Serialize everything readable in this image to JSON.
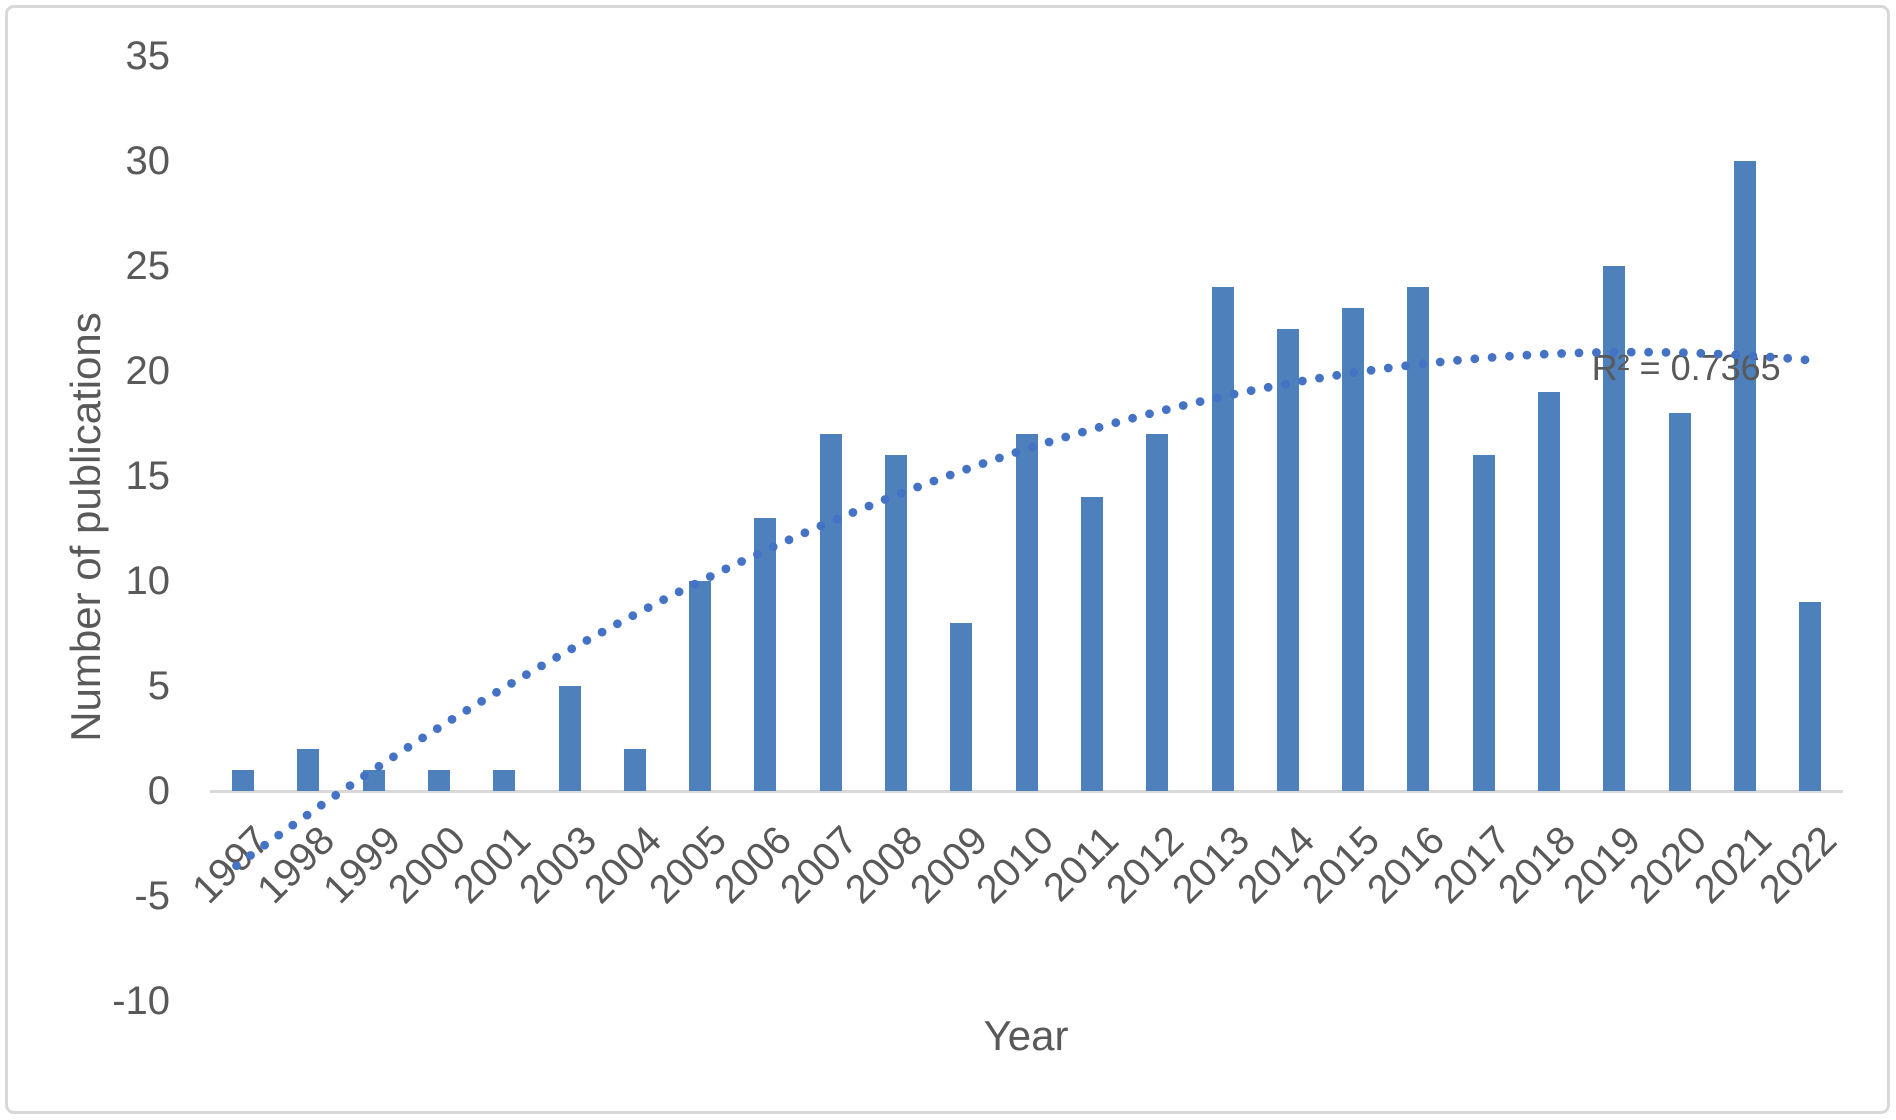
{
  "chart_data": {
    "type": "bar",
    "title": "",
    "xlabel": "Year",
    "ylabel": "Number of publications",
    "categories": [
      "1997",
      "1998",
      "1999",
      "2000",
      "2001",
      "2003",
      "2004",
      "2005",
      "2006",
      "2007",
      "2008",
      "2009",
      "2010",
      "2011",
      "2012",
      "2013",
      "2014",
      "2015",
      "2016",
      "2017",
      "2018",
      "2019",
      "2020",
      "2021",
      "2022"
    ],
    "values": [
      1,
      2,
      1,
      1,
      1,
      5,
      2,
      10,
      13,
      17,
      16,
      8,
      17,
      14,
      17,
      24,
      22,
      23,
      24,
      16,
      19,
      25,
      18,
      30,
      9
    ],
    "ylim": [
      -10,
      35
    ],
    "ytick_step": 5,
    "yticks": [
      35,
      30,
      25,
      20,
      15,
      10,
      5,
      0,
      -5,
      -10
    ],
    "grid": false,
    "legend": false,
    "bar_color": "#4E80BC",
    "trendline": {
      "kind": "polynomial",
      "order": 2,
      "style": "dotted",
      "color": "#4472C4",
      "vertex_index": 21.3,
      "vertex_value": 20.9,
      "a": -0.0534,
      "start_index": -0.1,
      "end_index": 23.95,
      "r2_label": "R² = 0.7365",
      "r2_label_index": 22.1,
      "r2_label_value": 20.15
    },
    "text_color": "#595959",
    "axis_line_color": "#D9D9D9",
    "frame_border_color": "#D8D8D8"
  }
}
